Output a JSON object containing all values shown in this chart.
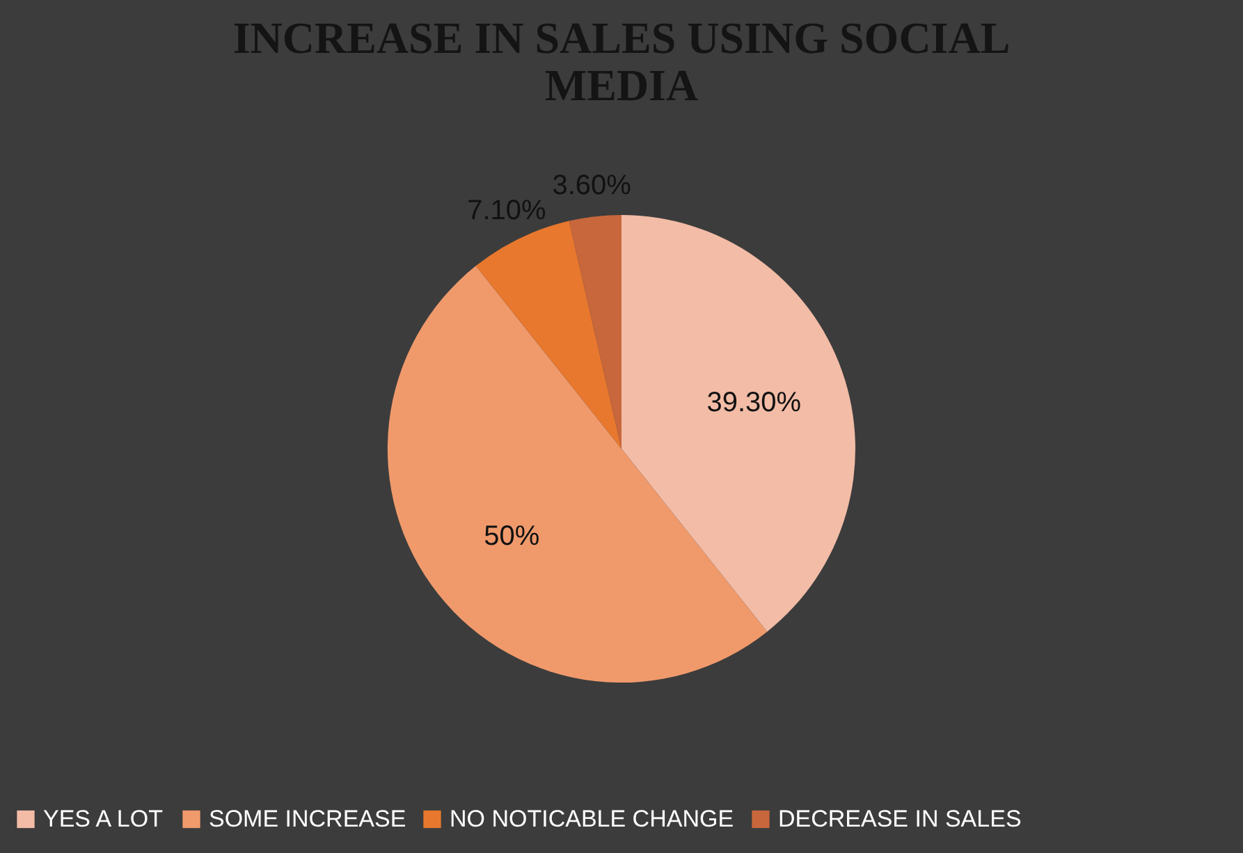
{
  "chart_data": {
    "type": "pie",
    "title": "INCREASE IN SALES USING SOCIAL MEDIA",
    "categories": [
      "YES A LOT",
      "SOME INCREASE",
      "NO NOTICABLE CHANGE",
      "DECREASE IN SALES"
    ],
    "values": [
      39.3,
      50,
      7.1,
      3.6
    ],
    "value_labels": [
      "39.30%",
      "50%",
      "7.10%",
      "3.60%"
    ],
    "colors": [
      "#f2bca6",
      "#f09a6c",
      "#e8782e",
      "#c8673c"
    ],
    "legend": "bottom"
  }
}
